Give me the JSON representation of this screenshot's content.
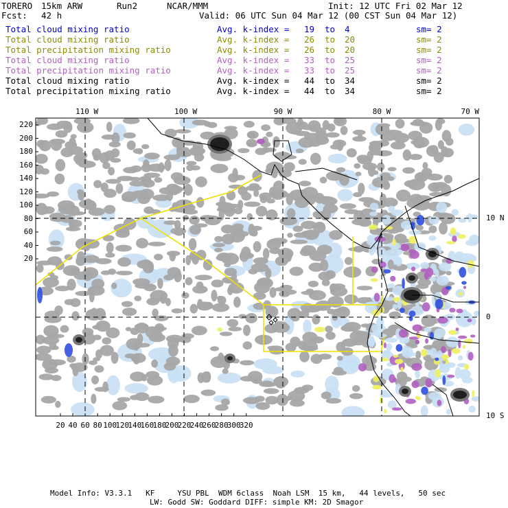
{
  "header": {
    "model": "TORERO",
    "resolution": "15km ARW",
    "run": "Run2",
    "org": "NCAR/MMM",
    "init": "Init: 12 UTC Fri 02 Mar 12",
    "fcst_label": "Fcst:",
    "fcst_value": "42 h",
    "valid": "Valid: 06 UTC Sun 04 Mar 12 (00 CST Sun 04 Mar 12)"
  },
  "legend": [
    {
      "field": "Total cloud mixing ratio",
      "index": "Avg. k-index =",
      "v1": "19",
      "to": "to",
      "v2": "4",
      "sm": "sm= 2",
      "color": "#0000cc"
    },
    {
      "field": "Total cloud mixing ratio",
      "index": "Avg. k-index =",
      "v1": "26",
      "to": "to",
      "v2": "20",
      "sm": "sm= 2",
      "color": "#8c8c00"
    },
    {
      "field": "Total precipitation mixing ratio",
      "index": "Avg. k-index =",
      "v1": "26",
      "to": "to",
      "v2": "20",
      "sm": "sm= 2",
      "color": "#8c8c00"
    },
    {
      "field": "Total cloud mixing ratio",
      "index": "Avg. k-index =",
      "v1": "33",
      "to": "to",
      "v2": "25",
      "sm": "sm= 2",
      "color": "#b060c0"
    },
    {
      "field": "Total precipitation mixing ratio",
      "index": "Avg. k-index =",
      "v1": "33",
      "to": "to",
      "v2": "25",
      "sm": "sm= 2",
      "color": "#b060c0"
    },
    {
      "field": "Total cloud mixing ratio",
      "index": "Avg. k-index =",
      "v1": "44",
      "to": "to",
      "v2": "34",
      "sm": "sm= 2",
      "color": "#000000"
    },
    {
      "field": "Total precipitation mixing ratio",
      "index": "Avg. k-index =",
      "v1": "44",
      "to": "to",
      "v2": "34",
      "sm": "sm= 2",
      "color": "#000000"
    }
  ],
  "axes": {
    "top_lon": [
      "110 W",
      "100 W",
      "90 W",
      "80 W",
      "70 W"
    ],
    "right_lat": [
      "10 N",
      "0",
      "10 S"
    ],
    "left_y": [
      "220",
      "200",
      "180",
      "160",
      "140",
      "120",
      "100",
      "80",
      "60",
      "40",
      "20"
    ],
    "bottom_x": [
      "20",
      "40",
      "60",
      "80",
      "100",
      "120",
      "140",
      "160",
      "180",
      "200",
      "220",
      "240",
      "260",
      "280",
      "300",
      "320"
    ]
  },
  "footer": {
    "line1": "Model Info: V3.3.1   KF     YSU PBL  WDM 6class  Noah LSM  15 km,   44 levels,   50 sec",
    "line2": "LW: Godd SW: Goddard DIFF: simple KM: 2D Smagor"
  },
  "colors": {
    "gray_cloud": "#a6a6a6",
    "light_blue": "#c8e0f4",
    "blue": "#3050e0",
    "purple": "#b060c0",
    "yellow": "#f0f060",
    "boundary": "#f0e000"
  }
}
